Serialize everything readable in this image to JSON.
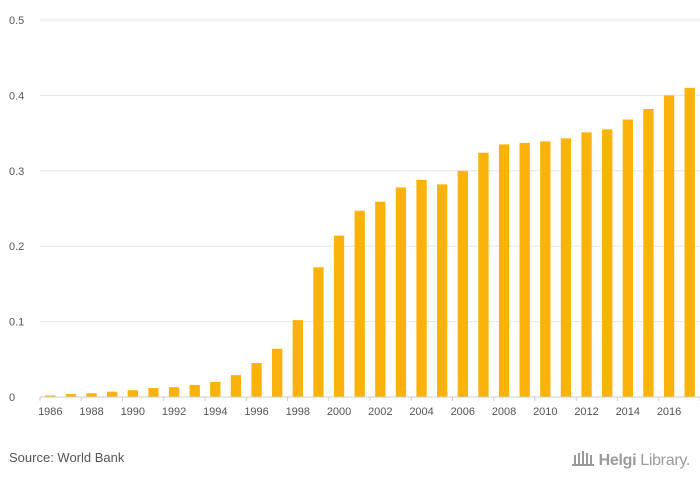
{
  "chart_data": {
    "type": "bar",
    "title": "",
    "xlabel": "",
    "ylabel": "",
    "ylim": [
      0,
      0.5
    ],
    "y_ticks": [
      "0",
      "0.1",
      "0.2",
      "0.3",
      "0.4",
      "0.5"
    ],
    "x_tick_labels": [
      "1986",
      "1988",
      "1990",
      "1992",
      "1994",
      "1996",
      "1998",
      "2000",
      "2002",
      "2004",
      "2006",
      "2008",
      "2010",
      "2012",
      "2014",
      "2016"
    ],
    "categories": [
      "1986",
      "1987",
      "1988",
      "1989",
      "1990",
      "1991",
      "1992",
      "1993",
      "1994",
      "1995",
      "1996",
      "1997",
      "1998",
      "1999",
      "2000",
      "2001",
      "2002",
      "2003",
      "2004",
      "2005",
      "2006",
      "2007",
      "2008",
      "2009",
      "2010",
      "2011",
      "2012",
      "2013",
      "2014",
      "2015",
      "2016",
      "2017"
    ],
    "values": [
      0.002,
      0.004,
      0.005,
      0.007,
      0.009,
      0.012,
      0.013,
      0.016,
      0.02,
      0.029,
      0.045,
      0.064,
      0.102,
      0.172,
      0.214,
      0.247,
      0.259,
      0.278,
      0.288,
      0.282,
      0.3,
      0.324,
      0.335,
      0.337,
      0.339,
      0.343,
      0.351,
      0.355,
      0.368,
      0.382,
      0.4,
      0.41
    ],
    "bar_color": "#FBB20A",
    "grid": true
  },
  "footer": {
    "source": "Source: World Bank",
    "logo_bold": "Helgi",
    "logo_light": "Library."
  }
}
